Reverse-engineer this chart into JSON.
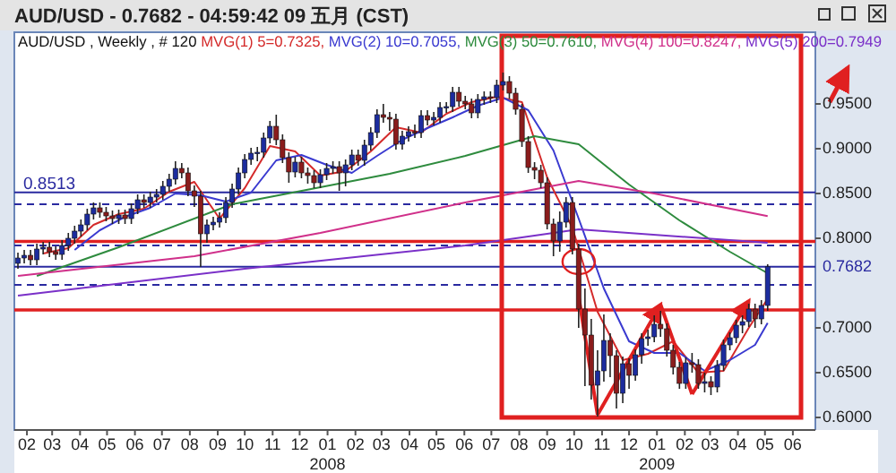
{
  "chart_data": {
    "type": "candlestick",
    "title": "AUD/USD - 0.7682 - 04:59:42 09 五月 (CST)",
    "subtitle": "AUD/USD , Weekly , # 120",
    "x": [
      "2007-01-22",
      "2007-01-29",
      "2007-02-05",
      "2007-02-12",
      "2007-02-19",
      "2007-02-26",
      "2007-03-05",
      "2007-03-12",
      "2007-03-19",
      "2007-03-26",
      "2007-04-02",
      "2007-04-09",
      "2007-04-16",
      "2007-04-23",
      "2007-04-30",
      "2007-05-07",
      "2007-05-14",
      "2007-05-21",
      "2007-05-28",
      "2007-06-04",
      "2007-06-11",
      "2007-06-18",
      "2007-06-25",
      "2007-07-02",
      "2007-07-09",
      "2007-07-16",
      "2007-07-23",
      "2007-07-30",
      "2007-08-06",
      "2007-08-13",
      "2007-08-20",
      "2007-08-27",
      "2007-09-03",
      "2007-09-10",
      "2007-09-17",
      "2007-09-24",
      "2007-10-01",
      "2007-10-08",
      "2007-10-15",
      "2007-10-22",
      "2007-10-29",
      "2007-11-05",
      "2007-11-12",
      "2007-11-19",
      "2007-11-26",
      "2007-12-03",
      "2007-12-10",
      "2007-12-17",
      "2007-12-24",
      "2007-12-31",
      "2008-01-07",
      "2008-01-14",
      "2008-01-21",
      "2008-01-28",
      "2008-02-04",
      "2008-02-11",
      "2008-02-18",
      "2008-02-25",
      "2008-03-03",
      "2008-03-10",
      "2008-03-17",
      "2008-03-24",
      "2008-03-31",
      "2008-04-07",
      "2008-04-14",
      "2008-04-21",
      "2008-04-28",
      "2008-05-05",
      "2008-05-12",
      "2008-05-19",
      "2008-05-26",
      "2008-06-02",
      "2008-06-09",
      "2008-06-16",
      "2008-06-23",
      "2008-06-30",
      "2008-07-07",
      "2008-07-14",
      "2008-07-21",
      "2008-07-28",
      "2008-08-04",
      "2008-08-11",
      "2008-08-18",
      "2008-08-25",
      "2008-09-01",
      "2008-09-08",
      "2008-09-15",
      "2008-09-22",
      "2008-09-29",
      "2008-10-06",
      "2008-10-13",
      "2008-10-20",
      "2008-10-27",
      "2008-11-03",
      "2008-11-10",
      "2008-11-17",
      "2008-11-24",
      "2008-12-01",
      "2008-12-08",
      "2008-12-15",
      "2008-12-22",
      "2008-12-29",
      "2009-01-05",
      "2009-01-12",
      "2009-01-19",
      "2009-01-26",
      "2009-02-02",
      "2009-02-09",
      "2009-02-16",
      "2009-02-23",
      "2009-03-02",
      "2009-03-09",
      "2009-03-16",
      "2009-03-23",
      "2009-03-30",
      "2009-04-06",
      "2009-04-13",
      "2009-04-20",
      "2009-04-27",
      "2009-05-04"
    ],
    "ohlc": [
      [
        0.772,
        0.784,
        0.766,
        0.778
      ],
      [
        0.778,
        0.787,
        0.772,
        0.781
      ],
      [
        0.781,
        0.787,
        0.77,
        0.776
      ],
      [
        0.776,
        0.794,
        0.77,
        0.788
      ],
      [
        0.788,
        0.796,
        0.782,
        0.79
      ],
      [
        0.79,
        0.796,
        0.779,
        0.785
      ],
      [
        0.785,
        0.791,
        0.776,
        0.782
      ],
      [
        0.782,
        0.798,
        0.776,
        0.792
      ],
      [
        0.792,
        0.806,
        0.786,
        0.8
      ],
      [
        0.8,
        0.814,
        0.794,
        0.808
      ],
      [
        0.808,
        0.821,
        0.802,
        0.815
      ],
      [
        0.815,
        0.833,
        0.809,
        0.827
      ],
      [
        0.827,
        0.84,
        0.821,
        0.834
      ],
      [
        0.834,
        0.84,
        0.823,
        0.829
      ],
      [
        0.829,
        0.835,
        0.819,
        0.825
      ],
      [
        0.825,
        0.831,
        0.816,
        0.822
      ],
      [
        0.822,
        0.832,
        0.816,
        0.826
      ],
      [
        0.826,
        0.832,
        0.816,
        0.822
      ],
      [
        0.822,
        0.839,
        0.816,
        0.833
      ],
      [
        0.833,
        0.849,
        0.827,
        0.843
      ],
      [
        0.843,
        0.849,
        0.834,
        0.84
      ],
      [
        0.84,
        0.852,
        0.834,
        0.846
      ],
      [
        0.846,
        0.855,
        0.84,
        0.849
      ],
      [
        0.849,
        0.864,
        0.843,
        0.858
      ],
      [
        0.858,
        0.872,
        0.852,
        0.866
      ],
      [
        0.866,
        0.886,
        0.86,
        0.878
      ],
      [
        0.878,
        0.884,
        0.867,
        0.873
      ],
      [
        0.873,
        0.879,
        0.847,
        0.853
      ],
      [
        0.853,
        0.859,
        0.835,
        0.847
      ],
      [
        0.847,
        0.853,
        0.768,
        0.805
      ],
      [
        0.805,
        0.821,
        0.795,
        0.815
      ],
      [
        0.815,
        0.824,
        0.809,
        0.818
      ],
      [
        0.818,
        0.829,
        0.812,
        0.823
      ],
      [
        0.823,
        0.846,
        0.817,
        0.84
      ],
      [
        0.84,
        0.861,
        0.834,
        0.855
      ],
      [
        0.855,
        0.879,
        0.849,
        0.873
      ],
      [
        0.873,
        0.894,
        0.867,
        0.888
      ],
      [
        0.888,
        0.901,
        0.882,
        0.895
      ],
      [
        0.895,
        0.902,
        0.886,
        0.896
      ],
      [
        0.896,
        0.918,
        0.89,
        0.912
      ],
      [
        0.912,
        0.931,
        0.906,
        0.925
      ],
      [
        0.925,
        0.938,
        0.904,
        0.91
      ],
      [
        0.91,
        0.916,
        0.884,
        0.89
      ],
      [
        0.89,
        0.896,
        0.862,
        0.874
      ],
      [
        0.874,
        0.891,
        0.868,
        0.885
      ],
      [
        0.885,
        0.891,
        0.867,
        0.873
      ],
      [
        0.873,
        0.879,
        0.861,
        0.87
      ],
      [
        0.87,
        0.876,
        0.856,
        0.862
      ],
      [
        0.862,
        0.877,
        0.856,
        0.871
      ],
      [
        0.871,
        0.884,
        0.865,
        0.878
      ],
      [
        0.878,
        0.886,
        0.872,
        0.88
      ],
      [
        0.88,
        0.886,
        0.853,
        0.873
      ],
      [
        0.873,
        0.888,
        0.858,
        0.882
      ],
      [
        0.882,
        0.899,
        0.876,
        0.893
      ],
      [
        0.893,
        0.899,
        0.881,
        0.887
      ],
      [
        0.887,
        0.91,
        0.881,
        0.904
      ],
      [
        0.904,
        0.924,
        0.898,
        0.918
      ],
      [
        0.918,
        0.944,
        0.912,
        0.938
      ],
      [
        0.938,
        0.95,
        0.929,
        0.935
      ],
      [
        0.935,
        0.941,
        0.92,
        0.933
      ],
      [
        0.933,
        0.939,
        0.899,
        0.905
      ],
      [
        0.905,
        0.92,
        0.899,
        0.914
      ],
      [
        0.914,
        0.925,
        0.908,
        0.919
      ],
      [
        0.919,
        0.927,
        0.912,
        0.918
      ],
      [
        0.918,
        0.943,
        0.912,
        0.937
      ],
      [
        0.937,
        0.943,
        0.926,
        0.932
      ],
      [
        0.932,
        0.941,
        0.926,
        0.935
      ],
      [
        0.935,
        0.952,
        0.929,
        0.946
      ],
      [
        0.946,
        0.952,
        0.94,
        0.947
      ],
      [
        0.947,
        0.969,
        0.941,
        0.963
      ],
      [
        0.963,
        0.969,
        0.947,
        0.953
      ],
      [
        0.953,
        0.959,
        0.944,
        0.95
      ],
      [
        0.95,
        0.956,
        0.934,
        0.94
      ],
      [
        0.94,
        0.961,
        0.934,
        0.955
      ],
      [
        0.955,
        0.964,
        0.949,
        0.958
      ],
      [
        0.958,
        0.964,
        0.951,
        0.957
      ],
      [
        0.957,
        0.977,
        0.951,
        0.971
      ],
      [
        0.971,
        0.985,
        0.965,
        0.975
      ],
      [
        0.975,
        0.981,
        0.956,
        0.962
      ],
      [
        0.962,
        0.968,
        0.938,
        0.944
      ],
      [
        0.944,
        0.95,
        0.902,
        0.908
      ],
      [
        0.908,
        0.914,
        0.873,
        0.879
      ],
      [
        0.879,
        0.885,
        0.866,
        0.876
      ],
      [
        0.876,
        0.882,
        0.856,
        0.862
      ],
      [
        0.862,
        0.868,
        0.81,
        0.816
      ],
      [
        0.816,
        0.822,
        0.78,
        0.797
      ],
      [
        0.797,
        0.83,
        0.785,
        0.818
      ],
      [
        0.818,
        0.846,
        0.812,
        0.84
      ],
      [
        0.84,
        0.846,
        0.782,
        0.788
      ],
      [
        0.788,
        0.794,
        0.7,
        0.721
      ],
      [
        0.721,
        0.744,
        0.635,
        0.692
      ],
      [
        0.692,
        0.71,
        0.62,
        0.636
      ],
      [
        0.636,
        0.675,
        0.601,
        0.652
      ],
      [
        0.652,
        0.715,
        0.64,
        0.686
      ],
      [
        0.686,
        0.694,
        0.645,
        0.669
      ],
      [
        0.669,
        0.675,
        0.61,
        0.627
      ],
      [
        0.627,
        0.668,
        0.616,
        0.66
      ],
      [
        0.66,
        0.666,
        0.632,
        0.647
      ],
      [
        0.647,
        0.676,
        0.641,
        0.67
      ],
      [
        0.67,
        0.694,
        0.66,
        0.688
      ],
      [
        0.688,
        0.698,
        0.68,
        0.69
      ],
      [
        0.69,
        0.714,
        0.684,
        0.704
      ],
      [
        0.704,
        0.719,
        0.69,
        0.699
      ],
      [
        0.699,
        0.705,
        0.668,
        0.675
      ],
      [
        0.675,
        0.681,
        0.648,
        0.656
      ],
      [
        0.656,
        0.662,
        0.632,
        0.638
      ],
      [
        0.638,
        0.667,
        0.632,
        0.661
      ],
      [
        0.661,
        0.672,
        0.65,
        0.659
      ],
      [
        0.659,
        0.665,
        0.632,
        0.638
      ],
      [
        0.638,
        0.65,
        0.628,
        0.64
      ],
      [
        0.64,
        0.646,
        0.625,
        0.634
      ],
      [
        0.634,
        0.664,
        0.628,
        0.658
      ],
      [
        0.658,
        0.687,
        0.652,
        0.681
      ],
      [
        0.681,
        0.695,
        0.675,
        0.689
      ],
      [
        0.689,
        0.709,
        0.683,
        0.703
      ],
      [
        0.703,
        0.714,
        0.694,
        0.707
      ],
      [
        0.707,
        0.727,
        0.701,
        0.721
      ],
      [
        0.721,
        0.727,
        0.7,
        0.71
      ],
      [
        0.71,
        0.731,
        0.704,
        0.725
      ],
      [
        0.725,
        0.771,
        0.719,
        0.7682
      ]
    ],
    "series": [
      {
        "name": "MVG(1) 5=0.7325,",
        "type": "line",
        "color": "#d42a2a",
        "x": [
          "2007-02-19",
          "2007-03-19",
          "2007-04-16",
          "2007-05-14",
          "2007-06-11",
          "2007-07-09",
          "2007-08-06",
          "2007-09-03",
          "2007-10-01",
          "2007-10-29",
          "2007-11-26",
          "2007-12-24",
          "2008-01-21",
          "2008-02-18",
          "2008-03-17",
          "2008-04-14",
          "2008-05-12",
          "2008-06-09",
          "2008-07-07",
          "2008-08-04",
          "2008-09-01",
          "2008-09-29",
          "2008-10-27",
          "2008-11-24",
          "2008-12-22",
          "2009-01-19",
          "2009-02-16",
          "2009-03-16",
          "2009-04-13",
          "2009-05-04"
        ],
        "values": [
          0.783,
          0.789,
          0.815,
          0.827,
          0.833,
          0.852,
          0.863,
          0.822,
          0.856,
          0.903,
          0.897,
          0.87,
          0.875,
          0.897,
          0.924,
          0.918,
          0.939,
          0.952,
          0.958,
          0.952,
          0.868,
          0.812,
          0.718,
          0.664,
          0.671,
          0.685,
          0.65,
          0.652,
          0.7,
          0.7325
        ]
      },
      {
        "name": "MVG(2) 10=0.7055,",
        "type": "line",
        "color": "#3a3ad0",
        "x": [
          "2007-03-26",
          "2007-04-23",
          "2007-05-21",
          "2007-06-18",
          "2007-07-16",
          "2007-08-13",
          "2007-09-10",
          "2007-10-08",
          "2007-11-05",
          "2007-12-03",
          "2007-12-31",
          "2008-01-28",
          "2008-02-25",
          "2008-03-24",
          "2008-04-21",
          "2008-05-19",
          "2008-06-16",
          "2008-07-14",
          "2008-08-11",
          "2008-09-08",
          "2008-10-06",
          "2008-11-03",
          "2008-12-01",
          "2008-12-29",
          "2009-01-26",
          "2009-02-23",
          "2009-03-23",
          "2009-04-20",
          "2009-05-04"
        ],
        "values": [
          0.787,
          0.809,
          0.824,
          0.834,
          0.85,
          0.848,
          0.841,
          0.851,
          0.887,
          0.893,
          0.882,
          0.873,
          0.892,
          0.91,
          0.923,
          0.935,
          0.948,
          0.957,
          0.943,
          0.898,
          0.822,
          0.744,
          0.685,
          0.672,
          0.672,
          0.652,
          0.664,
          0.681,
          0.7055
        ]
      },
      {
        "name": "MVG(3) 50=0.7610,",
        "type": "line",
        "color": "#2e8b3e",
        "x": [
          "2007-02-12",
          "2007-05-14",
          "2007-09-17",
          "2007-12-24",
          "2008-03-10",
          "2008-06-02",
          "2008-08-18",
          "2008-10-06",
          "2008-12-01",
          "2009-01-26",
          "2009-03-23",
          "2009-05-04"
        ],
        "values": [
          0.758,
          0.79,
          0.838,
          0.857,
          0.872,
          0.892,
          0.914,
          0.905,
          0.86,
          0.82,
          0.785,
          0.761
        ]
      },
      {
        "name": "MVG(4) 100=0.8247,",
        "type": "line",
        "color": "#d0308a",
        "x": [
          "2007-01-22",
          "2007-08-06",
          "2007-12-24",
          "2008-06-02",
          "2008-10-06",
          "2008-12-29",
          "2009-05-04"
        ],
        "values": [
          0.758,
          0.78,
          0.806,
          0.84,
          0.864,
          0.85,
          0.8247
        ]
      },
      {
        "name": "MVG(5) 200=0.7949",
        "type": "line",
        "color": "#7a30c8",
        "x": [
          "2007-01-22",
          "2007-10-01",
          "2008-06-02",
          "2008-10-06",
          "2009-05-04"
        ],
        "values": [
          0.736,
          0.766,
          0.792,
          0.81,
          0.7949
        ]
      }
    ],
    "xlim": [
      "2007-01-18",
      "2009-06-26"
    ],
    "ylim": [
      0.586,
      1.03
    ],
    "xticks": [
      {
        "value": "2007-02-01",
        "label": "02"
      },
      {
        "value": "2007-03-01",
        "label": "03"
      },
      {
        "value": "2007-04-01",
        "label": "04"
      },
      {
        "value": "2007-05-01",
        "label": "05"
      },
      {
        "value": "2007-06-01",
        "label": "06"
      },
      {
        "value": "2007-07-01",
        "label": "07"
      },
      {
        "value": "2007-08-01",
        "label": "08"
      },
      {
        "value": "2007-09-01",
        "label": "09"
      },
      {
        "value": "2007-10-01",
        "label": "10"
      },
      {
        "value": "2007-11-01",
        "label": "11"
      },
      {
        "value": "2007-12-01",
        "label": "12"
      },
      {
        "value": "2008-01-01",
        "label": "01"
      },
      {
        "value": "2008-02-01",
        "label": "02"
      },
      {
        "value": "2008-03-01",
        "label": "03"
      },
      {
        "value": "2008-04-01",
        "label": "04"
      },
      {
        "value": "2008-05-01",
        "label": "05"
      },
      {
        "value": "2008-06-01",
        "label": "06"
      },
      {
        "value": "2008-07-01",
        "label": "07"
      },
      {
        "value": "2008-08-01",
        "label": "08"
      },
      {
        "value": "2008-09-01",
        "label": "09"
      },
      {
        "value": "2008-10-01",
        "label": "10"
      },
      {
        "value": "2008-11-01",
        "label": "11"
      },
      {
        "value": "2008-12-01",
        "label": "12"
      },
      {
        "value": "2009-01-01",
        "label": "01"
      },
      {
        "value": "2009-02-01",
        "label": "02"
      },
      {
        "value": "2009-03-01",
        "label": "03"
      },
      {
        "value": "2009-04-01",
        "label": "04"
      },
      {
        "value": "2009-05-01",
        "label": "05"
      },
      {
        "value": "2009-06-01",
        "label": "06"
      }
    ],
    "yticks": [
      {
        "value": 0.6,
        "label": "0.6000"
      },
      {
        "value": 0.65,
        "label": "0.6500"
      },
      {
        "value": 0.7,
        "label": "0.7000"
      },
      {
        "value": 0.8,
        "label": "0.8000"
      },
      {
        "value": 0.85,
        "label": "0.8500"
      },
      {
        "value": 0.9,
        "label": "0.9000"
      },
      {
        "value": 0.95,
        "label": "0.9500"
      }
    ],
    "ref_lines": [
      {
        "axis": "y",
        "value": 0.8513,
        "label": "0.8513",
        "color": "#2a2aa0"
      },
      {
        "axis": "y",
        "value": 0.7682,
        "label": "0.7682",
        "color": "#2a2aa0"
      },
      {
        "axis": "y",
        "value": 0.838,
        "color": "#2a2aa0",
        "line_style": "dashed"
      },
      {
        "axis": "y",
        "value": 0.792,
        "color": "#2a2aa0",
        "line_style": "dashed"
      },
      {
        "axis": "y",
        "value": 0.748,
        "color": "#2a2aa0",
        "line_style": "dashed"
      },
      {
        "axis": "y",
        "value": 0.7965,
        "color": "#e02020",
        "line_style": "solid"
      },
      {
        "axis": "y",
        "value": 0.72,
        "color": "#e02020",
        "line_style": "solid"
      }
    ],
    "annotations": [
      "2008",
      "2009"
    ],
    "grid": false,
    "tick_labels": "xy"
  }
}
